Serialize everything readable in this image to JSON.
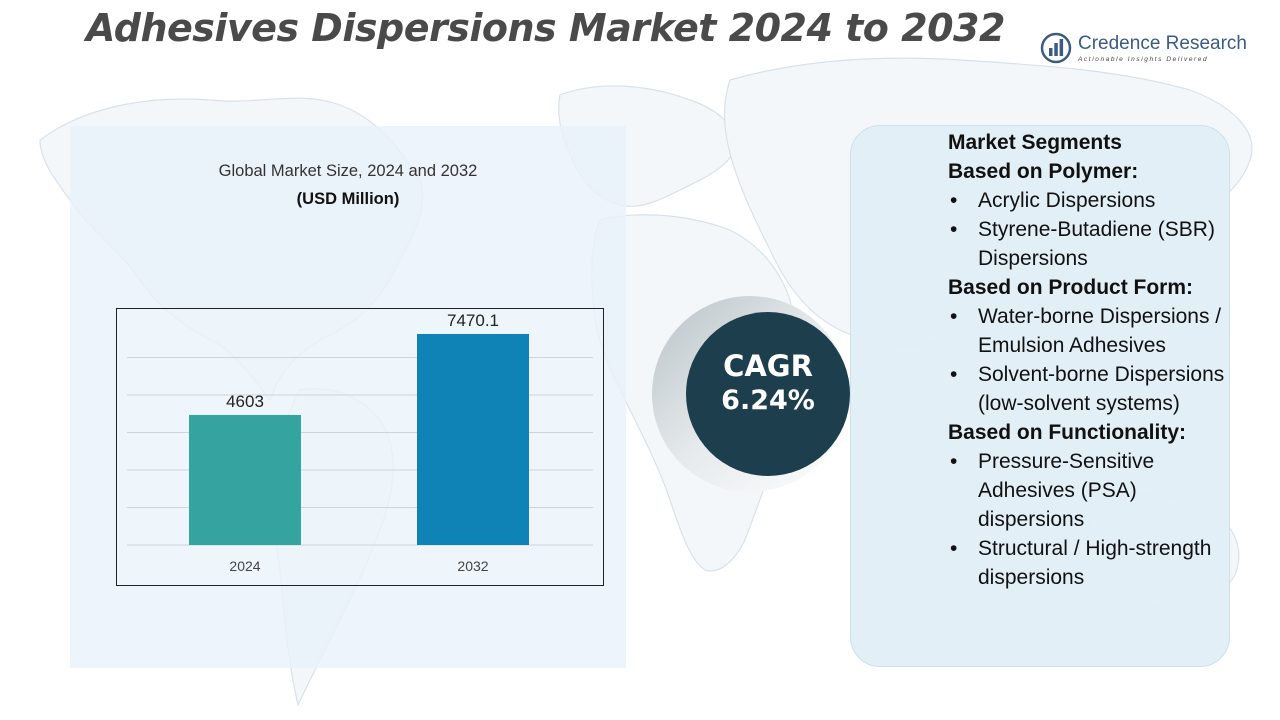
{
  "title": "Adhesives Dispersions Market 2024 to 2032",
  "brand": {
    "name": "Credence Research",
    "tagline": "Actionable Insights Delivered",
    "logo_icon": "bar-chart-logo-icon",
    "color": "#3b5b84"
  },
  "chart_panel": {
    "heading": "Global Market Size, 2024 and 2032",
    "unit": "(USD Million)"
  },
  "chart_data": {
    "type": "bar",
    "categories": [
      "2024",
      "2032"
    ],
    "values": [
      4603,
      7470.1
    ],
    "value_labels": [
      "4603",
      "7470.1"
    ],
    "colors": [
      "#35a3a0",
      "#0f82b6"
    ],
    "ylim": [
      0,
      8000
    ],
    "grid": true,
    "legend": "none"
  },
  "cagr": {
    "label": "CAGR",
    "value": "6.24%",
    "color": "#1c3e4d"
  },
  "segments": {
    "title": "Market Segments",
    "groups": [
      {
        "heading": "Based on Polymer:",
        "items": [
          "Acrylic Dispersions",
          "Styrene-Butadiene (SBR) Dispersions"
        ]
      },
      {
        "heading": "Based on Product Form:",
        "items": [
          "Water-borne Dispersions / Emulsion Adhesives",
          "Solvent-borne Dispersions (low-solvent systems)"
        ]
      },
      {
        "heading": "Based on Functionality:",
        "items": [
          "Pressure-Sensitive Adhesives (PSA) dispersions",
          "Structural / High-strength dispersions"
        ]
      }
    ]
  }
}
